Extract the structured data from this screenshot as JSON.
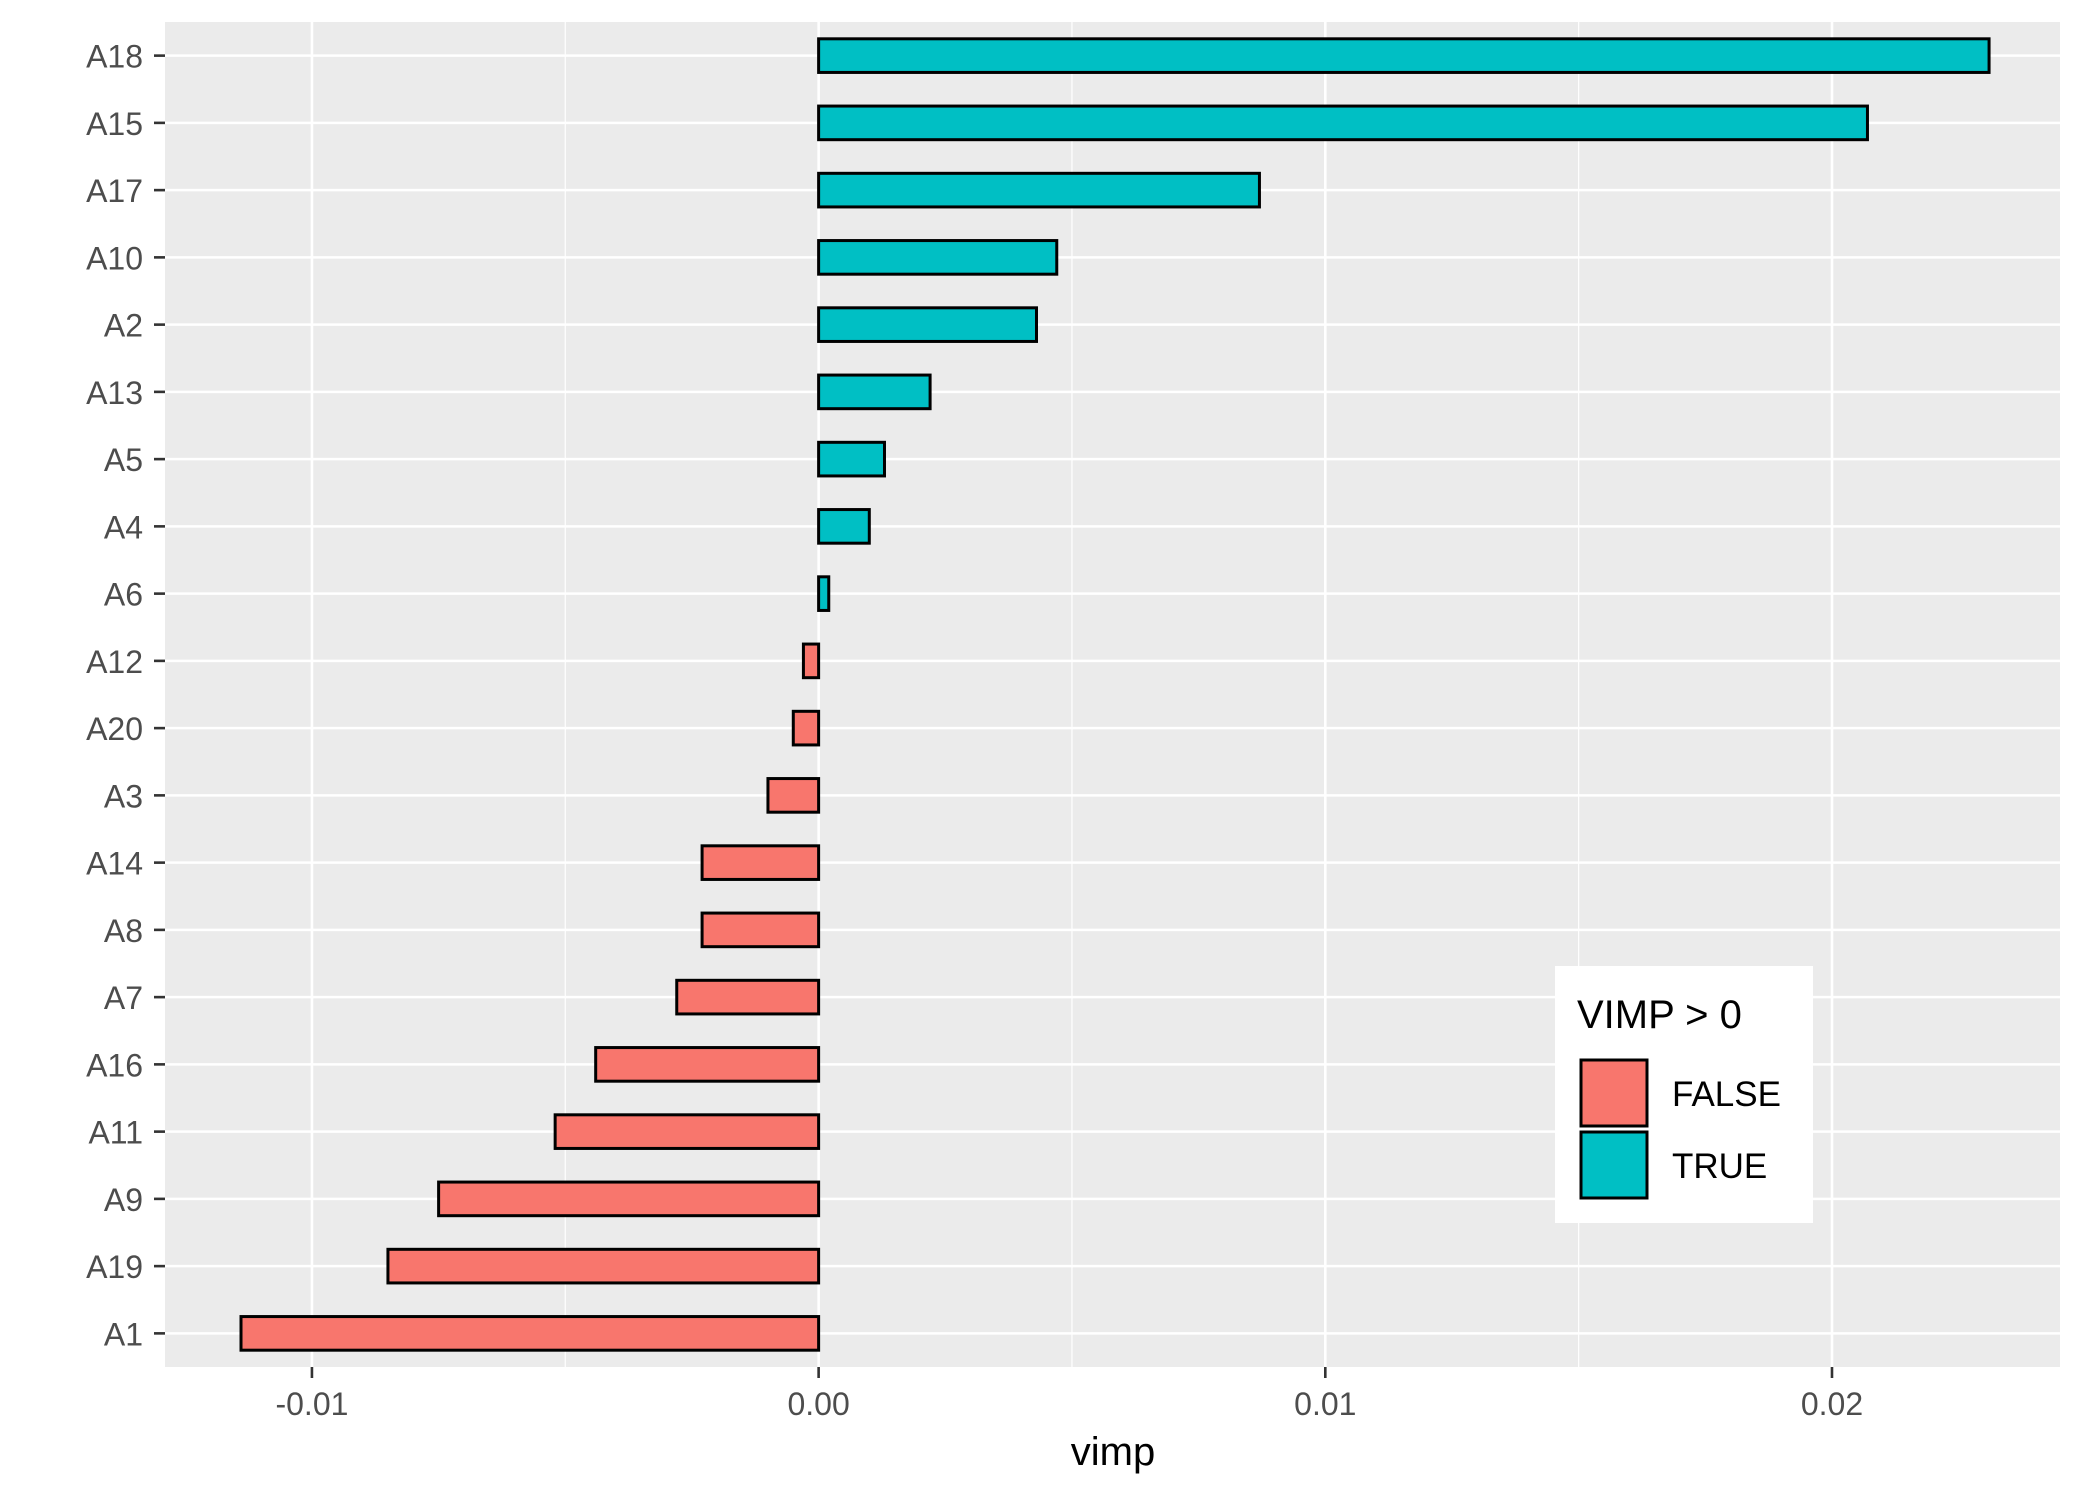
{
  "chart_data": {
    "type": "bar",
    "orientation": "horizontal",
    "categories": [
      "A18",
      "A15",
      "A17",
      "A10",
      "A2",
      "A13",
      "A5",
      "A4",
      "A6",
      "A12",
      "A20",
      "A3",
      "A14",
      "A8",
      "A7",
      "A16",
      "A11",
      "A9",
      "A19",
      "A1"
    ],
    "values": [
      0.0231,
      0.0207,
      0.0087,
      0.0047,
      0.0043,
      0.0022,
      0.0013,
      0.001,
      0.0002,
      -0.0003,
      -0.0005,
      -0.001,
      -0.0023,
      -0.0023,
      -0.0028,
      -0.0044,
      -0.0052,
      -0.0075,
      -0.0085,
      -0.0114
    ],
    "xlim": [
      -0.0129,
      0.0245
    ],
    "xticks": [
      -0.01,
      0.0,
      0.01,
      0.02
    ],
    "xtick_labels": [
      "-0.01",
      "0.00",
      "0.01",
      "0.02"
    ],
    "xlabel": "vimp",
    "ylabel": "",
    "grid": true,
    "legend": {
      "title": "VIMP > 0",
      "placement": "bottom-right-inside",
      "entries": [
        {
          "label": "FALSE",
          "color": "#F8766D"
        },
        {
          "label": "TRUE",
          "color": "#00BFC4"
        }
      ]
    }
  },
  "colors": {
    "panel_bg": "#EBEBEB",
    "grid": "#FFFFFF",
    "false_fill": "#F8766D",
    "true_fill": "#00BFC4",
    "bar_stroke": "#000000",
    "tick_text": "#4D4D4D",
    "tick_mark": "#333333"
  }
}
